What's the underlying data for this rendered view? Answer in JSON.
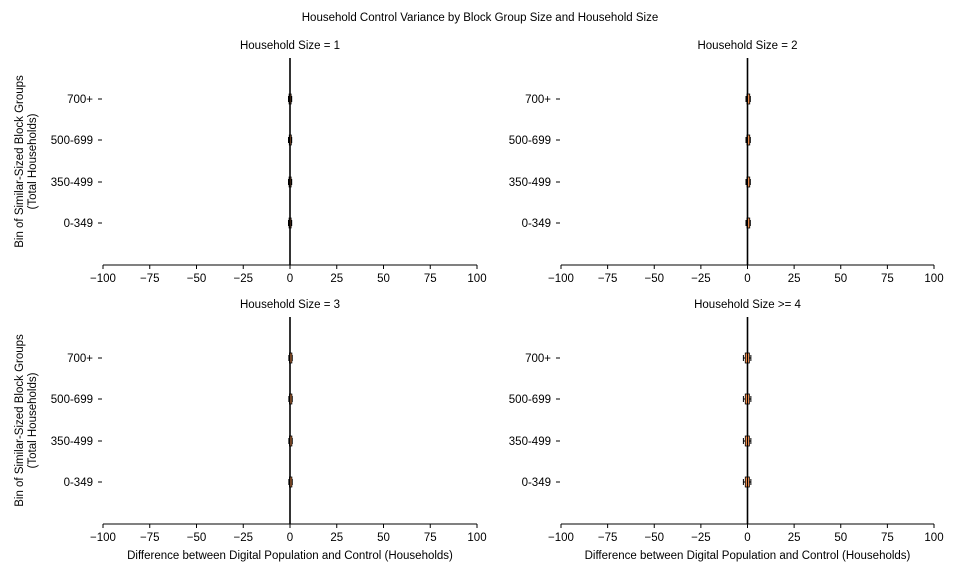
{
  "title": "Household Control Variance by Block Group Size and Household Size",
  "colors": {
    "box_fill": "#e8884a",
    "box_edge": "#000000",
    "axis": "#000000"
  },
  "chart_data": [
    {
      "type": "boxplot",
      "title": "Household Size = 1",
      "xlabel": "",
      "ylabel": "Bin of Similar-Sized Block Groups\n(Total Households)",
      "xlim": [
        -100,
        100
      ],
      "xticks": [
        "−100",
        "−75",
        "−50",
        "−25",
        "0",
        "25",
        "50",
        "75",
        "100"
      ],
      "xtick_values": [
        -100,
        -75,
        -50,
        -25,
        0,
        25,
        50,
        75,
        100
      ],
      "categories": [
        "0-349",
        "350-499",
        "500-699",
        "700+"
      ],
      "boxes": [
        {
          "whislo": -0.8,
          "q1": -0.5,
          "med": 0,
          "q3": 0.6,
          "whishi": 0.9
        },
        {
          "whislo": -0.8,
          "q1": -0.5,
          "med": 0,
          "q3": 0.6,
          "whishi": 0.9
        },
        {
          "whislo": -0.8,
          "q1": -0.4,
          "med": 0,
          "q3": 0.7,
          "whishi": 0.9
        },
        {
          "whislo": -0.8,
          "q1": -0.5,
          "med": 0,
          "q3": 0.6,
          "whishi": 0.9
        }
      ],
      "vline": 0
    },
    {
      "type": "boxplot",
      "title": "Household Size = 2",
      "xlabel": "",
      "ylabel": "",
      "xlim": [
        -100,
        100
      ],
      "xticks": [
        "−100",
        "−75",
        "−50",
        "−25",
        "0",
        "25",
        "50",
        "75",
        "100"
      ],
      "xtick_values": [
        -100,
        -75,
        -50,
        -25,
        0,
        25,
        50,
        75,
        100
      ],
      "categories": [
        "0-349",
        "350-499",
        "500-699",
        "700+"
      ],
      "boxes": [
        {
          "whislo": -0.8,
          "q1": -0.3,
          "med": 0,
          "q3": 1.2,
          "whishi": 1.5
        },
        {
          "whislo": -0.8,
          "q1": -0.3,
          "med": 0,
          "q3": 1.2,
          "whishi": 1.5
        },
        {
          "whislo": -0.8,
          "q1": -0.3,
          "med": 0,
          "q3": 1.2,
          "whishi": 1.5
        },
        {
          "whislo": -0.8,
          "q1": -0.3,
          "med": 0,
          "q3": 1.2,
          "whishi": 1.5
        }
      ],
      "vline": 0
    },
    {
      "type": "boxplot",
      "title": "Household Size = 3",
      "xlabel": "Difference between Digital Population and Control (Households)",
      "ylabel": "Bin of Similar-Sized Block Groups\n(Total Households)",
      "xlim": [
        -100,
        100
      ],
      "xticks": [
        "−100",
        "−75",
        "−50",
        "−25",
        "0",
        "25",
        "50",
        "75",
        "100"
      ],
      "xtick_values": [
        -100,
        -75,
        -50,
        -25,
        0,
        25,
        50,
        75,
        100
      ],
      "categories": [
        "0-349",
        "350-499",
        "500-699",
        "700+"
      ],
      "boxes": [
        {
          "whislo": -0.6,
          "q1": -0.3,
          "med": 0,
          "q3": 1.0,
          "whishi": 1.2
        },
        {
          "whislo": -0.6,
          "q1": -0.3,
          "med": 0,
          "q3": 1.0,
          "whishi": 1.2
        },
        {
          "whislo": -0.6,
          "q1": -0.3,
          "med": 0,
          "q3": 1.0,
          "whishi": 1.2
        },
        {
          "whislo": -0.6,
          "q1": -0.3,
          "med": 0,
          "q3": 1.0,
          "whishi": 1.2
        }
      ],
      "vline": 0
    },
    {
      "type": "boxplot",
      "title": "Household Size >= 4",
      "xlabel": "Difference between Digital Population and Control (Households)",
      "ylabel": "",
      "xlim": [
        -100,
        100
      ],
      "xticks": [
        "−100",
        "−75",
        "−50",
        "−25",
        "0",
        "25",
        "50",
        "75",
        "100"
      ],
      "xtick_values": [
        -100,
        -75,
        -50,
        -25,
        0,
        25,
        50,
        75,
        100
      ],
      "categories": [
        "0-349",
        "350-499",
        "500-699",
        "700+"
      ],
      "boxes": [
        {
          "whislo": -2.2,
          "q1": -1.2,
          "med": 0,
          "q3": 1.0,
          "whishi": 1.8
        },
        {
          "whislo": -2.2,
          "q1": -1.2,
          "med": 0,
          "q3": 1.0,
          "whishi": 1.8
        },
        {
          "whislo": -2.2,
          "q1": -1.2,
          "med": 0,
          "q3": 1.0,
          "whishi": 1.8
        },
        {
          "whislo": -2.2,
          "q1": -1.2,
          "med": 0,
          "q3": 1.0,
          "whishi": 1.8
        }
      ],
      "vline": 0
    }
  ]
}
